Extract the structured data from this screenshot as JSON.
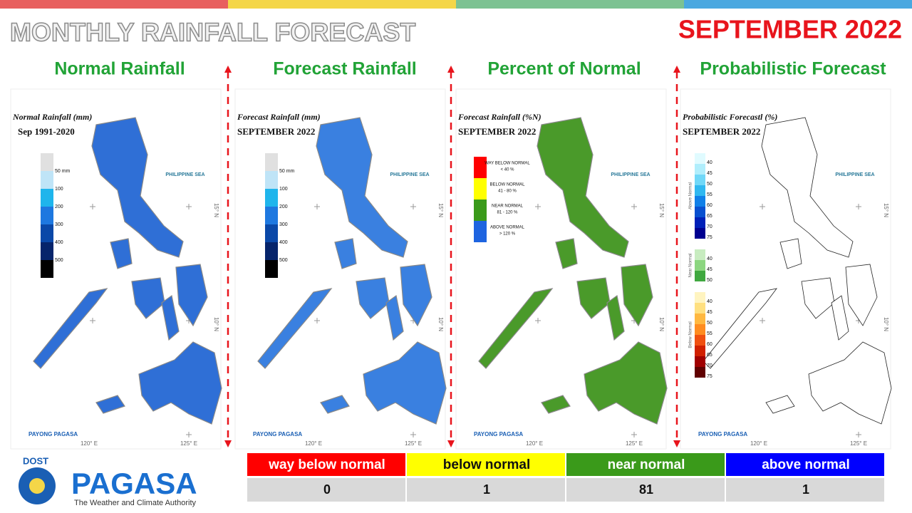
{
  "header": {
    "title": "MONTHLY RAINFALL FORECAST",
    "period": "SEPTEMBER 2022"
  },
  "panels": [
    {
      "heading": "Normal Rainfall",
      "map_title": "Normal Rainfall (mm)",
      "map_subtitle": "Sep 1991-2020",
      "color": "#2f6fd6",
      "legend": [
        "50 mm",
        "100",
        "200",
        "300",
        "400",
        "500"
      ]
    },
    {
      "heading": "Forecast Rainfall",
      "map_title": "Forecast Rainfall (mm)",
      "map_subtitle": "SEPTEMBER 2022",
      "color": "#3a80e0",
      "legend": [
        "50 mm",
        "100",
        "200",
        "300",
        "400",
        "500"
      ]
    },
    {
      "heading": "Percent of Normal",
      "map_title": "Forecast Rainfall (%N)",
      "map_subtitle": "SEPTEMBER 2022",
      "color": "#4a9a2a",
      "legend": [
        {
          "label": "WAY BELOW NORMAL",
          "range": "< 40 %",
          "color": "#ff0000"
        },
        {
          "label": "BELOW NORMAL",
          "range": "41 - 80 %",
          "color": "#ffff00"
        },
        {
          "label": "NEAR NORMAL",
          "range": "81 - 120 %",
          "color": "#3a9a1a"
        },
        {
          "label": "ABOVE NORMAL",
          "range": "> 120 %",
          "color": "#1e64e0"
        }
      ]
    },
    {
      "heading": "Probabilistic Forecast",
      "map_title": "Probabilistic Forecastl (%)",
      "map_subtitle": "SEPTEMBER 2022",
      "color": "#ffffff",
      "legend": [
        {
          "name": "Above Normal",
          "labels": [
            40,
            45,
            50,
            55,
            60,
            65,
            70,
            75
          ],
          "colors": [
            "#e0fbff",
            "#b0eefc",
            "#70d8f8",
            "#30b8f0",
            "#1080e8",
            "#0850d0",
            "#0020b8",
            "#000090"
          ]
        },
        {
          "name": "Near Normal",
          "labels": [
            40,
            45,
            50
          ],
          "colors": [
            "#c8ecc0",
            "#8cd680",
            "#40a840"
          ]
        },
        {
          "name": "Below Normal",
          "labels": [
            40,
            45,
            50,
            55,
            60,
            65,
            70,
            75
          ],
          "colors": [
            "#fff4c0",
            "#ffe080",
            "#ffb840",
            "#ff8c20",
            "#f05010",
            "#d02000",
            "#a00000",
            "#600000"
          ]
        }
      ]
    }
  ],
  "map_labels": {
    "sea": "PHILIPPINE SEA",
    "lon": [
      "120° E",
      "125° E"
    ],
    "lat": [
      "15° N",
      "10° N"
    ]
  },
  "summary": {
    "columns": [
      {
        "label": "way below normal",
        "color": "#ff0000"
      },
      {
        "label": "below normal",
        "color": "#ffff00"
      },
      {
        "label": "near normal",
        "color": "#3a9a1a"
      },
      {
        "label": "above normal",
        "color": "#0000ff"
      }
    ],
    "counts": [
      0,
      1,
      81,
      1
    ]
  },
  "logo": {
    "agency": "DOST",
    "name": "PAGASA",
    "tagline": "The Weather and Climate Authority",
    "badge": "PAYONG PAGASA"
  }
}
